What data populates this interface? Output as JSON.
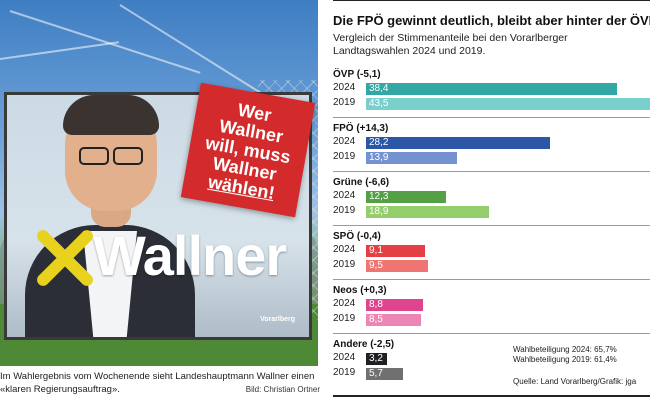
{
  "photo": {
    "billboard_name": "Wallner",
    "slogan_lines": [
      "Wer",
      "Wallner",
      "will, muss",
      "Wallner",
      "wählen!"
    ],
    "billboard_region": "Vorarlberg"
  },
  "caption": {
    "text": "Im Wahlergebnis vom Wochenende sieht Landeshauptmann Wallner einen «klaren Regierungsauftrag».",
    "credit": "Bild: Christian Ortner"
  },
  "chart_data": {
    "type": "bar",
    "orientation": "horizontal",
    "title": "Die FPÖ gewinnt deutlich, bleibt aber hinter der ÖVP",
    "subtitle": "Vergleich der Stimmenanteile bei den Vorarlberger Landtagswahlen 2024 und 2019.",
    "xlim": [
      0,
      43.5
    ],
    "series_years": [
      "2024",
      "2019"
    ],
    "groups": [
      {
        "label": "ÖVP (-5,1)",
        "values": [
          38.4,
          43.5
        ],
        "value_labels": [
          "38,4",
          "43,5"
        ],
        "colors": [
          "#33a7a3",
          "#79cfcb"
        ],
        "text_colors": [
          "#ffffff",
          "#ffffff"
        ]
      },
      {
        "label": "FPÖ (+14,3)",
        "values": [
          28.2,
          13.9
        ],
        "value_labels": [
          "28,2",
          "13,9"
        ],
        "colors": [
          "#2c56a6",
          "#7592d0"
        ],
        "text_colors": [
          "#ffffff",
          "#ffffff"
        ]
      },
      {
        "label": "Grüne (-6,6)",
        "values": [
          12.3,
          18.9
        ],
        "value_labels": [
          "12,3",
          "18,9"
        ],
        "colors": [
          "#55a046",
          "#94cd6c"
        ],
        "text_colors": [
          "#ffffff",
          "#ffffff"
        ]
      },
      {
        "label": "SPÖ (-0,4)",
        "values": [
          9.1,
          9.5
        ],
        "value_labels": [
          "9,1",
          "9,5"
        ],
        "colors": [
          "#e43f44",
          "#ee7572"
        ],
        "text_colors": [
          "#ffffff",
          "#ffffff"
        ]
      },
      {
        "label": "Neos (+0,3)",
        "values": [
          8.8,
          8.5
        ],
        "value_labels": [
          "8,8",
          "8,5"
        ],
        "colors": [
          "#e1448f",
          "#eb86b4"
        ],
        "text_colors": [
          "#ffffff",
          "#ffffff"
        ]
      },
      {
        "label": "Andere (-2,5)",
        "values": [
          3.2,
          5.7
        ],
        "value_labels": [
          "3,2",
          "5,7"
        ],
        "colors": [
          "#1f1f24",
          "#707070"
        ],
        "text_colors": [
          "#ffffff",
          "#ffffff"
        ]
      }
    ],
    "notes": [
      "Wahlbeteiligung 2024: 65,7%",
      "Wahlbeteiligung 2019: 61,4%"
    ],
    "source": "Quelle: Land Vorarlberg/Grafik: jga"
  }
}
